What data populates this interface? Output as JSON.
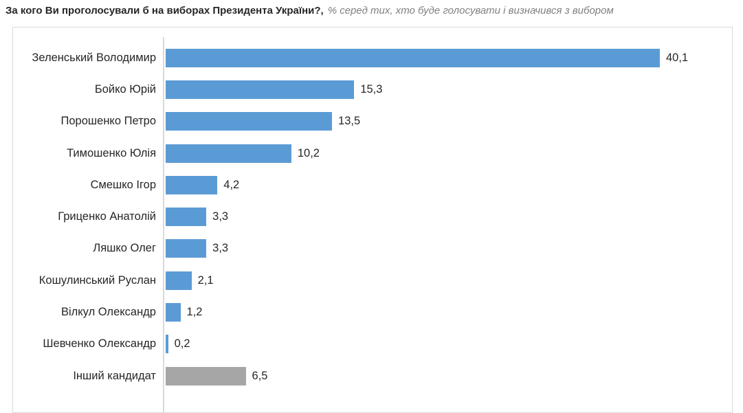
{
  "title": {
    "question": "За кого Ви проголосували б на виборах Президента України?,",
    "subtitle": "% серед тих, хто буде голосувати і визначився з вибором"
  },
  "colors": {
    "bar_blue": "#5B9BD5",
    "bar_gray": "#A6A6A6",
    "axis_line": "#D9D9D9",
    "chart_border": "#D9D9D9",
    "title_text": "#262626",
    "subtitle_text": "#808080",
    "label_text": "#262626"
  },
  "chart_data": {
    "type": "bar",
    "orientation": "horizontal",
    "title": "За кого Ви проголосували б на виборах Президента України?",
    "subtitle": "% серед тих, хто буде голосувати і визначився з вибором",
    "xlabel": "",
    "ylabel": "",
    "xlim": [
      0,
      45
    ],
    "grid": false,
    "legend": "none",
    "value_decimal_separator": ",",
    "categories": [
      "Зеленський Володимир",
      "Бойко Юрій",
      "Порошенко Петро",
      "Тимошенко Юлія",
      "Смешко Ігор",
      "Гриценко Анатолій",
      "Ляшко Олег",
      "Кошулинський Руслан",
      "Вілкул Олександр",
      "Шевченко Олександр",
      "Інший кандидат"
    ],
    "values": [
      40.1,
      15.3,
      13.5,
      10.2,
      4.2,
      3.3,
      3.3,
      2.1,
      1.2,
      0.2,
      6.5
    ],
    "value_labels": [
      "40,1",
      "15,3",
      "13,5",
      "10,2",
      "4,2",
      "3,3",
      "3,3",
      "2,1",
      "1,2",
      "0,2",
      "6,5"
    ],
    "bar_colors": [
      "#5B9BD5",
      "#5B9BD5",
      "#5B9BD5",
      "#5B9BD5",
      "#5B9BD5",
      "#5B9BD5",
      "#5B9BD5",
      "#5B9BD5",
      "#5B9BD5",
      "#5B9BD5",
      "#A6A6A6"
    ]
  }
}
